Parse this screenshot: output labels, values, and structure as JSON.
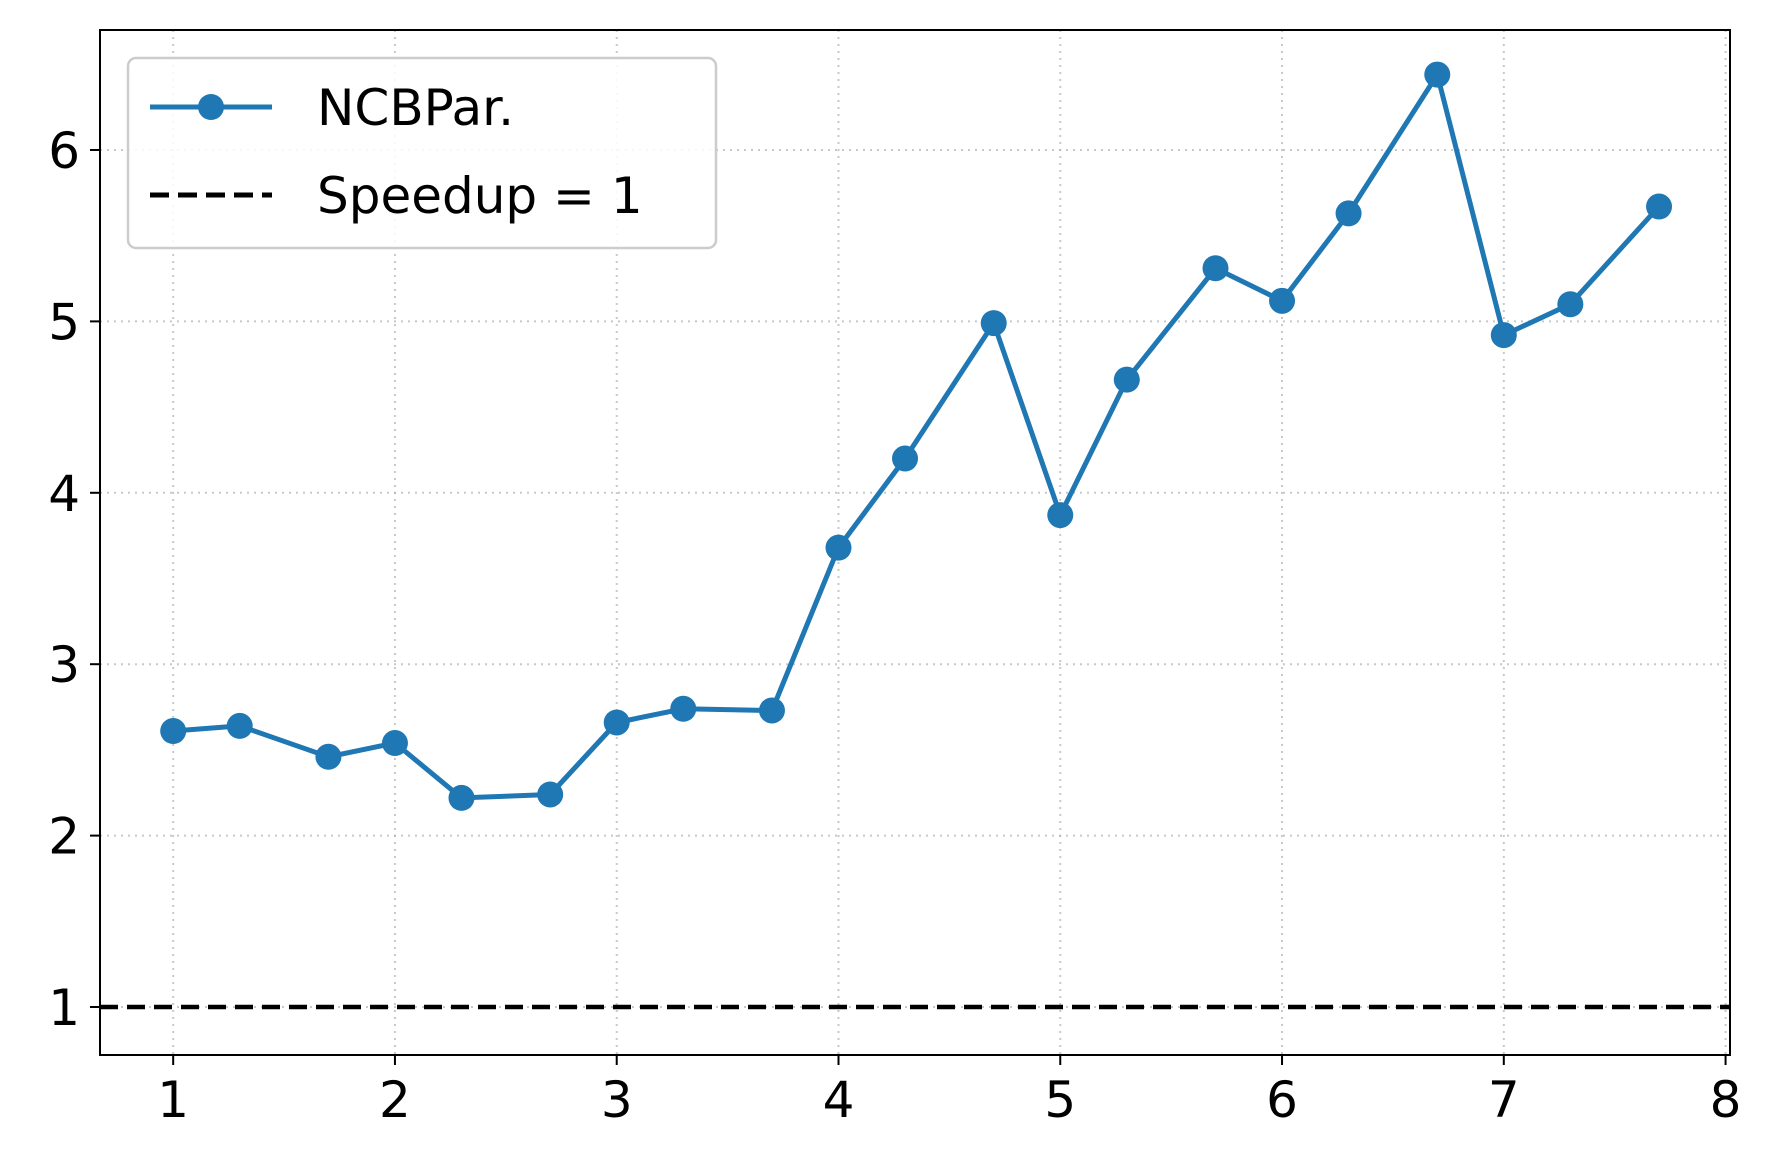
{
  "chart_data": {
    "type": "line",
    "title": "",
    "xlabel": "",
    "ylabel": "",
    "xlim": [
      0.67,
      8.02
    ],
    "ylim": [
      0.72,
      6.7
    ],
    "xticks": [
      "1",
      "2",
      "3",
      "4",
      "5",
      "6",
      "7",
      "8"
    ],
    "yticks": [
      "1",
      "2",
      "3",
      "4",
      "5",
      "6"
    ],
    "grid": true,
    "legend_position": "top-left",
    "series": [
      {
        "name": "NCBPar.",
        "color": "#1f77b4",
        "style": "solid-with-markers",
        "x": [
          1.0,
          1.3,
          1.7,
          2.0,
          2.3,
          2.7,
          3.0,
          3.3,
          3.7,
          4.0,
          4.3,
          4.7,
          5.0,
          5.3,
          5.7,
          6.0,
          6.3,
          6.7,
          7.0,
          7.3,
          7.7
        ],
        "y": [
          2.61,
          2.64,
          2.46,
          2.54,
          2.22,
          2.24,
          2.66,
          2.74,
          2.73,
          3.68,
          4.2,
          4.99,
          3.87,
          4.66,
          5.31,
          5.12,
          5.63,
          6.44,
          4.92,
          5.1,
          5.67
        ]
      },
      {
        "name": "Speedup = 1",
        "color": "#000000",
        "style": "dashed",
        "y_constant": 1
      }
    ]
  }
}
